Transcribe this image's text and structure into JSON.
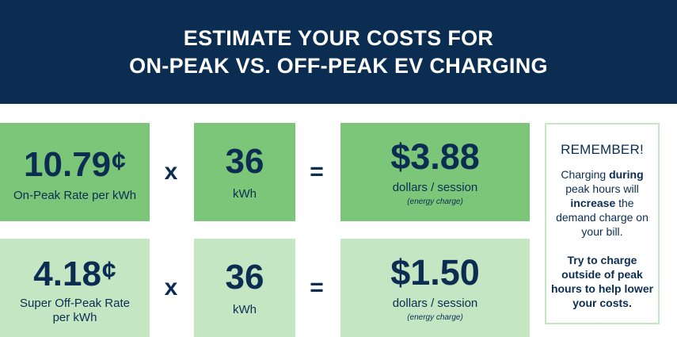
{
  "header": {
    "line1": "ESTIMATE YOUR COSTS FOR",
    "line2": "ON-PEAK VS. OFF-PEAK EV CHARGING"
  },
  "operators": {
    "times": "x",
    "equals": "="
  },
  "rows": [
    {
      "rate_value": "10.79",
      "rate_unit": "¢",
      "rate_label": "On-Peak Rate per kWh",
      "kwh_value": "36",
      "kwh_label": "kWh",
      "cost_value": "$3.88",
      "cost_label": "dollars / session",
      "cost_note": "(energy charge)"
    },
    {
      "rate_value": "4.18",
      "rate_unit": "¢",
      "rate_label_line1": "Super Off-Peak Rate",
      "rate_label_line2": "per kWh",
      "kwh_value": "36",
      "kwh_label": "kWh",
      "cost_value": "$1.50",
      "cost_label": "dollars / session",
      "cost_note": "(energy charge)"
    }
  ],
  "reminder": {
    "title": "REMEMBER!",
    "text_1": "Charging",
    "text_bold_1": "during",
    "text_2": "peak hours will",
    "text_bold_2": "increase",
    "text_3": "the demand charge on your bill.",
    "tip": "Try to charge outside of peak hours to help lower your costs."
  },
  "colors": {
    "navy": "#0b2d52",
    "green_dark": "#7cc67a",
    "green_light": "#c5e6c2"
  }
}
